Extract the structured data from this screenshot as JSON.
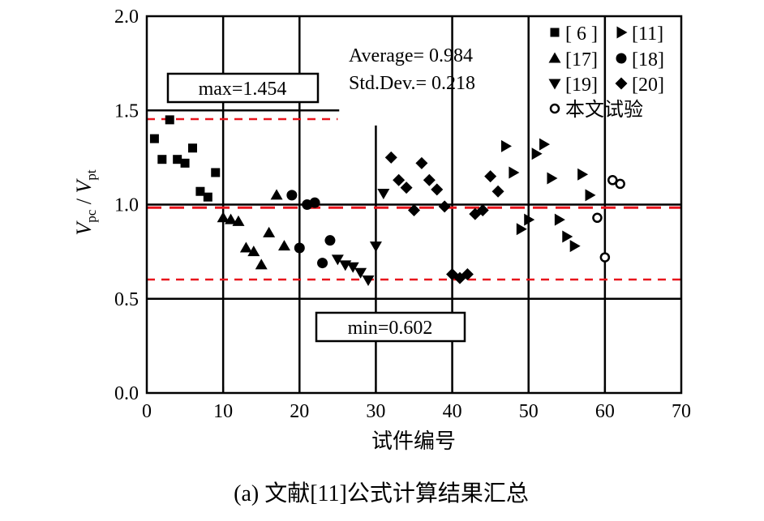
{
  "chart_data": {
    "type": "scatter",
    "title": "",
    "caption": "(a) 文献[11]公式计算结果汇总",
    "xlabel": "试件编号",
    "ylabel_main": "V",
    "ylabel_sub1": "pc",
    "ylabel_mid": " / ",
    "ylabel_sub2": "pt",
    "xlim": [
      0,
      70
    ],
    "ylim": [
      0,
      2.0
    ],
    "xticks": [
      0,
      10,
      20,
      30,
      40,
      50,
      60,
      70
    ],
    "xtick_labels": [
      "0",
      "10",
      "20",
      "30",
      "40",
      "50",
      "60",
      "70"
    ],
    "yticks": [
      0,
      0.5,
      1.0,
      1.5,
      2.0
    ],
    "ytick_labels": [
      "0.0",
      "0.5",
      "1.0",
      "1.5",
      "2.0"
    ],
    "grid": "vertical lines at 10-60; horizontal lines at 0.5, 1.0, 1.5",
    "reference_lines": [
      {
        "label": "max",
        "value": 1.454
      },
      {
        "label": "average",
        "value": 0.984
      },
      {
        "label": "min",
        "value": 0.602
      }
    ],
    "annotations": {
      "max": "max=1.454",
      "min": "min=0.602",
      "average": "Average= 0.984",
      "std": "Std.Dev.= 0.218"
    },
    "legend_position": "top-right",
    "series": [
      {
        "name": "[ 6 ]",
        "marker": "square",
        "x": [
          1,
          2,
          3,
          4,
          5,
          6,
          7,
          8,
          9
        ],
        "y": [
          1.35,
          1.24,
          1.45,
          1.24,
          1.22,
          1.3,
          1.07,
          1.04,
          1.17
        ]
      },
      {
        "name": "[11]",
        "marker": "triangle-right",
        "x": [
          47,
          48,
          49,
          50,
          51,
          52,
          53,
          54,
          55,
          56,
          57,
          58
        ],
        "y": [
          1.31,
          1.17,
          0.87,
          0.92,
          1.27,
          1.32,
          1.14,
          0.92,
          0.83,
          0.78,
          1.16,
          1.05
        ]
      },
      {
        "name": "[17]",
        "marker": "triangle-up",
        "x": [
          10,
          11,
          12,
          13,
          14,
          15,
          16,
          17,
          18
        ],
        "y": [
          0.93,
          0.92,
          0.91,
          0.77,
          0.75,
          0.68,
          0.85,
          1.05,
          0.78
        ]
      },
      {
        "name": "[18]",
        "marker": "circle",
        "x": [
          19,
          20,
          21,
          22,
          23,
          24
        ],
        "y": [
          1.05,
          0.77,
          1.0,
          1.01,
          0.69,
          0.81
        ]
      },
      {
        "name": "[19]",
        "marker": "triangle-down",
        "x": [
          25,
          26,
          27,
          28,
          29,
          30,
          31
        ],
        "y": [
          0.71,
          0.68,
          0.67,
          0.64,
          0.6,
          0.78,
          1.06
        ]
      },
      {
        "name": "[20]",
        "marker": "diamond",
        "x": [
          32,
          33,
          34,
          35,
          36,
          37,
          38,
          39,
          40,
          41,
          42,
          43,
          44,
          45,
          46
        ],
        "y": [
          1.25,
          1.13,
          1.09,
          0.97,
          1.22,
          1.13,
          1.08,
          0.99,
          0.63,
          0.61,
          0.63,
          0.95,
          0.97,
          1.15,
          1.07
        ]
      },
      {
        "name": "本文试验",
        "marker": "open-circle",
        "x": [
          59,
          60,
          61,
          62
        ],
        "y": [
          0.93,
          0.72,
          1.13,
          1.11
        ]
      }
    ],
    "colors": {
      "reference": "#e8141c",
      "axis": "#000000"
    }
  }
}
